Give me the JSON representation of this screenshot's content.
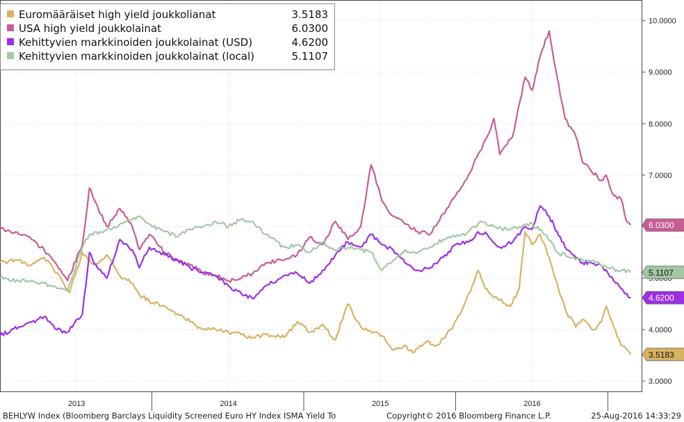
{
  "chart_data": {
    "type": "line",
    "x_axis": {
      "type": "date",
      "range": [
        "2012-07-01",
        "2016-09-20"
      ],
      "year_labels": [
        {
          "label": "2013",
          "date": "2013-01-01"
        },
        {
          "label": "2014",
          "date": "2014-01-01"
        },
        {
          "label": "2015",
          "date": "2015-01-01"
        },
        {
          "label": "2016",
          "date": "2016-01-01"
        }
      ],
      "year_separators": [
        "2013-07-01",
        "2014-07-01",
        "2015-07-01",
        "2016-07-01"
      ]
    },
    "y_axis": {
      "side": "right",
      "ylim": [
        2.8,
        10.4
      ],
      "ticks": [
        3,
        4,
        5,
        6,
        7,
        8,
        9,
        10
      ],
      "tick_labels": [
        "3.0000",
        "4.0000",
        "5.0000",
        "6.0000",
        "7.0000",
        "8.0000",
        "9.0000",
        "10.0000"
      ]
    },
    "grid": true,
    "legend_position": "top-left",
    "series": [
      {
        "name": "Euromääräiset high yield joukkolianat",
        "last_value": "3.5183",
        "color": "#d9b262",
        "points": [
          [
            "2012-07-01",
            5.3
          ],
          [
            "2012-08-15",
            5.35
          ],
          [
            "2012-09-15",
            5.25
          ],
          [
            "2012-10-15",
            5.4
          ],
          [
            "2012-11-15",
            5.1
          ],
          [
            "2012-12-15",
            4.72
          ],
          [
            "2013-01-15",
            5.5
          ],
          [
            "2013-02-15",
            5.25
          ],
          [
            "2013-03-15",
            5.45
          ],
          [
            "2013-04-15",
            5.05
          ],
          [
            "2013-05-15",
            4.9
          ],
          [
            "2013-06-01",
            4.68
          ],
          [
            "2013-06-25",
            4.55
          ],
          [
            "2013-08-01",
            4.45
          ],
          [
            "2013-09-01",
            4.3
          ],
          [
            "2013-10-01",
            4.15
          ],
          [
            "2013-11-01",
            4.0
          ],
          [
            "2013-12-01",
            4.0
          ],
          [
            "2014-01-01",
            3.95
          ],
          [
            "2014-02-01",
            3.9
          ],
          [
            "2014-03-01",
            3.85
          ],
          [
            "2014-04-01",
            3.9
          ],
          [
            "2014-05-15",
            3.85
          ],
          [
            "2014-06-15",
            4.15
          ],
          [
            "2014-07-15",
            3.95
          ],
          [
            "2014-08-15",
            4.1
          ],
          [
            "2014-09-15",
            3.8
          ],
          [
            "2014-10-15",
            4.5
          ],
          [
            "2014-11-15",
            4.05
          ],
          [
            "2014-12-15",
            3.95
          ],
          [
            "2015-01-05",
            3.88
          ],
          [
            "2015-02-01",
            3.6
          ],
          [
            "2015-03-01",
            3.7
          ],
          [
            "2015-03-20",
            3.55
          ],
          [
            "2015-04-20",
            3.75
          ],
          [
            "2015-05-20",
            3.7
          ],
          [
            "2015-06-20",
            4.0
          ],
          [
            "2015-07-20",
            4.45
          ],
          [
            "2015-08-10",
            4.85
          ],
          [
            "2015-08-24",
            5.15
          ],
          [
            "2015-09-10",
            4.8
          ],
          [
            "2015-10-10",
            4.6
          ],
          [
            "2015-11-10",
            4.45
          ],
          [
            "2015-12-01",
            4.8
          ],
          [
            "2015-12-15",
            5.9
          ],
          [
            "2016-01-01",
            5.65
          ],
          [
            "2016-01-20",
            5.85
          ],
          [
            "2016-02-11",
            5.4
          ],
          [
            "2016-03-01",
            4.9
          ],
          [
            "2016-03-20",
            4.4
          ],
          [
            "2016-04-15",
            4.05
          ],
          [
            "2016-05-01",
            4.2
          ],
          [
            "2016-05-20",
            4.05
          ],
          [
            "2016-06-01",
            4.0
          ],
          [
            "2016-06-15",
            4.15
          ],
          [
            "2016-06-27",
            4.45
          ],
          [
            "2016-07-15",
            4.05
          ],
          [
            "2016-08-01",
            3.7
          ],
          [
            "2016-08-15",
            3.62
          ],
          [
            "2016-08-25",
            3.5183
          ]
        ]
      },
      {
        "name": "USA high yield joukkolainat",
        "last_value": "6.0300",
        "color": "#c85c95",
        "points": [
          [
            "2012-07-01",
            5.95
          ],
          [
            "2012-08-15",
            5.85
          ],
          [
            "2012-09-15",
            5.75
          ],
          [
            "2012-10-15",
            5.55
          ],
          [
            "2012-11-15",
            5.25
          ],
          [
            "2012-12-10",
            4.95
          ],
          [
            "2013-01-15",
            5.65
          ],
          [
            "2013-02-01",
            6.75
          ],
          [
            "2013-02-20",
            6.4
          ],
          [
            "2013-03-15",
            6.0
          ],
          [
            "2013-04-15",
            6.35
          ],
          [
            "2013-05-15",
            6.0
          ],
          [
            "2013-06-01",
            5.55
          ],
          [
            "2013-06-25",
            5.85
          ],
          [
            "2013-08-01",
            5.5
          ],
          [
            "2013-09-01",
            5.35
          ],
          [
            "2013-10-01",
            5.25
          ],
          [
            "2013-11-01",
            5.1
          ],
          [
            "2013-12-01",
            5.05
          ],
          [
            "2014-01-01",
            4.95
          ],
          [
            "2014-02-01",
            5.0
          ],
          [
            "2014-03-01",
            5.1
          ],
          [
            "2014-04-01",
            5.3
          ],
          [
            "2014-05-15",
            5.35
          ],
          [
            "2014-06-15",
            5.45
          ],
          [
            "2014-07-15",
            5.8
          ],
          [
            "2014-08-15",
            5.65
          ],
          [
            "2014-09-15",
            6.1
          ],
          [
            "2014-10-15",
            5.75
          ],
          [
            "2014-11-15",
            6.0
          ],
          [
            "2014-12-10",
            7.2
          ],
          [
            "2015-01-05",
            6.5
          ],
          [
            "2015-02-01",
            6.2
          ],
          [
            "2015-03-01",
            6.05
          ],
          [
            "2015-04-01",
            5.9
          ],
          [
            "2015-05-01",
            5.85
          ],
          [
            "2015-06-01",
            6.25
          ],
          [
            "2015-07-01",
            6.6
          ],
          [
            "2015-08-01",
            7.0
          ],
          [
            "2015-08-24",
            7.4
          ],
          [
            "2015-09-15",
            7.75
          ],
          [
            "2015-10-01",
            8.1
          ],
          [
            "2015-10-15",
            7.4
          ],
          [
            "2015-11-15",
            7.75
          ],
          [
            "2015-12-15",
            8.9
          ],
          [
            "2016-01-01",
            8.65
          ],
          [
            "2016-01-20",
            9.3
          ],
          [
            "2016-02-11",
            9.8
          ],
          [
            "2016-03-01",
            8.9
          ],
          [
            "2016-03-20",
            8.1
          ],
          [
            "2016-04-15",
            7.75
          ],
          [
            "2016-05-01",
            7.25
          ],
          [
            "2016-05-20",
            7.1
          ],
          [
            "2016-06-15",
            6.9
          ],
          [
            "2016-06-27",
            7.0
          ],
          [
            "2016-07-15",
            6.6
          ],
          [
            "2016-08-01",
            6.55
          ],
          [
            "2016-08-15",
            6.1
          ],
          [
            "2016-08-25",
            6.03
          ]
        ]
      },
      {
        "name": "Kehittyvien markkinoiden joukkolainat (USD)",
        "last_value": "4.6200",
        "color": "#9d2fe6",
        "points": [
          [
            "2012-07-01",
            3.88
          ],
          [
            "2012-08-15",
            4.05
          ],
          [
            "2012-09-15",
            4.15
          ],
          [
            "2012-10-15",
            4.25
          ],
          [
            "2012-11-15",
            4.0
          ],
          [
            "2012-12-10",
            3.95
          ],
          [
            "2013-01-15",
            4.3
          ],
          [
            "2013-02-01",
            5.5
          ],
          [
            "2013-02-20",
            5.2
          ],
          [
            "2013-03-15",
            5.0
          ],
          [
            "2013-04-15",
            5.75
          ],
          [
            "2013-05-15",
            5.55
          ],
          [
            "2013-06-01",
            5.2
          ],
          [
            "2013-06-25",
            5.6
          ],
          [
            "2013-08-01",
            5.45
          ],
          [
            "2013-09-01",
            5.35
          ],
          [
            "2013-10-01",
            5.2
          ],
          [
            "2013-11-01",
            5.1
          ],
          [
            "2013-12-01",
            5.05
          ],
          [
            "2014-01-01",
            4.85
          ],
          [
            "2014-02-01",
            4.7
          ],
          [
            "2014-03-01",
            4.6
          ],
          [
            "2014-04-01",
            4.85
          ],
          [
            "2014-05-15",
            5.05
          ],
          [
            "2014-06-15",
            5.1
          ],
          [
            "2014-07-15",
            4.9
          ],
          [
            "2014-08-15",
            5.15
          ],
          [
            "2014-09-15",
            5.45
          ],
          [
            "2014-10-15",
            5.7
          ],
          [
            "2014-11-15",
            5.6
          ],
          [
            "2014-12-10",
            5.85
          ],
          [
            "2015-01-05",
            5.65
          ],
          [
            "2015-02-01",
            5.55
          ],
          [
            "2015-03-01",
            5.3
          ],
          [
            "2015-04-01",
            5.15
          ],
          [
            "2015-05-01",
            5.2
          ],
          [
            "2015-06-01",
            5.4
          ],
          [
            "2015-07-01",
            5.65
          ],
          [
            "2015-08-01",
            5.7
          ],
          [
            "2015-08-24",
            5.9
          ],
          [
            "2015-09-15",
            5.85
          ],
          [
            "2015-10-15",
            5.6
          ],
          [
            "2015-11-15",
            5.7
          ],
          [
            "2015-12-15",
            6.0
          ],
          [
            "2016-01-01",
            5.95
          ],
          [
            "2016-01-20",
            6.4
          ],
          [
            "2016-02-11",
            6.2
          ],
          [
            "2016-03-01",
            5.9
          ],
          [
            "2016-03-20",
            5.6
          ],
          [
            "2016-04-15",
            5.4
          ],
          [
            "2016-05-01",
            5.3
          ],
          [
            "2016-05-20",
            5.3
          ],
          [
            "2016-06-15",
            5.25
          ],
          [
            "2016-07-01",
            5.1
          ],
          [
            "2016-07-15",
            4.95
          ],
          [
            "2016-08-01",
            4.8
          ],
          [
            "2016-08-15",
            4.7
          ],
          [
            "2016-08-25",
            4.62
          ]
        ]
      },
      {
        "name": "Kehittyvien markkinoiden joukkolainat (local)",
        "last_value": "5.1107",
        "color": "#a3c8a3",
        "points": [
          [
            "2012-07-01",
            5.0
          ],
          [
            "2012-08-15",
            4.95
          ],
          [
            "2012-09-15",
            4.95
          ],
          [
            "2012-10-15",
            4.9
          ],
          [
            "2012-11-15",
            4.8
          ],
          [
            "2012-12-10",
            4.75
          ],
          [
            "2013-01-15",
            5.6
          ],
          [
            "2013-02-01",
            5.85
          ],
          [
            "2013-03-01",
            5.9
          ],
          [
            "2013-04-01",
            6.0
          ],
          [
            "2013-05-01",
            6.1
          ],
          [
            "2013-06-01",
            6.2
          ],
          [
            "2013-06-25",
            6.05
          ],
          [
            "2013-08-01",
            5.9
          ],
          [
            "2013-09-01",
            5.8
          ],
          [
            "2013-10-01",
            5.95
          ],
          [
            "2013-11-01",
            6.0
          ],
          [
            "2013-12-01",
            6.1
          ],
          [
            "2014-01-01",
            6.0
          ],
          [
            "2014-02-01",
            6.15
          ],
          [
            "2014-03-01",
            6.1
          ],
          [
            "2014-04-01",
            5.85
          ],
          [
            "2014-05-15",
            5.6
          ],
          [
            "2014-06-15",
            5.65
          ],
          [
            "2014-07-15",
            5.5
          ],
          [
            "2014-08-15",
            5.7
          ],
          [
            "2014-09-15",
            5.55
          ],
          [
            "2014-10-15",
            5.6
          ],
          [
            "2014-11-15",
            5.55
          ],
          [
            "2014-12-10",
            5.5
          ],
          [
            "2015-01-05",
            5.15
          ],
          [
            "2015-02-01",
            5.35
          ],
          [
            "2015-03-01",
            5.55
          ],
          [
            "2015-04-01",
            5.5
          ],
          [
            "2015-05-01",
            5.6
          ],
          [
            "2015-06-01",
            5.75
          ],
          [
            "2015-07-01",
            5.8
          ],
          [
            "2015-08-01",
            5.9
          ],
          [
            "2015-09-01",
            6.1
          ],
          [
            "2015-10-01",
            6.0
          ],
          [
            "2015-11-01",
            5.95
          ],
          [
            "2015-12-01",
            6.0
          ],
          [
            "2016-01-01",
            6.05
          ],
          [
            "2016-02-01",
            5.85
          ],
          [
            "2016-03-01",
            5.5
          ],
          [
            "2016-04-01",
            5.4
          ],
          [
            "2016-05-01",
            5.35
          ],
          [
            "2016-06-01",
            5.3
          ],
          [
            "2016-07-01",
            5.2
          ],
          [
            "2016-08-01",
            5.15
          ],
          [
            "2016-08-25",
            5.1107
          ]
        ]
      }
    ]
  },
  "footer": {
    "index_label": "BEHLYW Index (Bloomberg Barclays Liquidity Screened Euro HY Index ISMA Yield To",
    "copyright": "Copyright© 2016 Bloomberg Finance L.P.",
    "timestamp": "25-Aug-2016 14:33:29"
  }
}
